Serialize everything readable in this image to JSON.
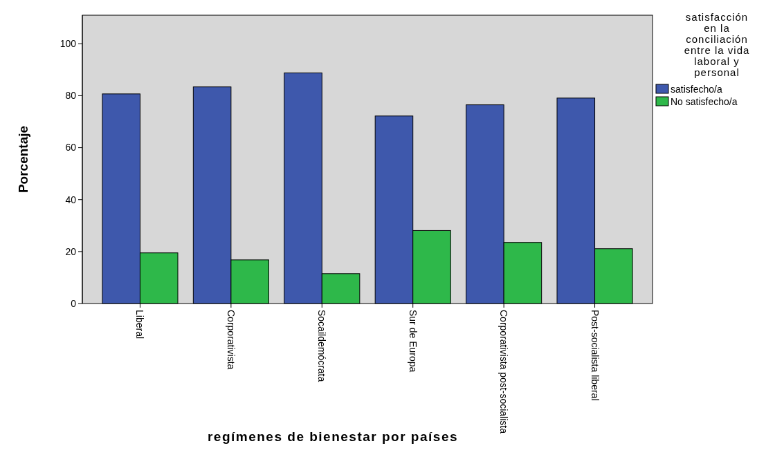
{
  "chart_data": {
    "type": "bar",
    "xlabel": "regímenes de bienestar por países",
    "ylabel": "Porcentaje",
    "legend_title": "satisfacción en la conciliación entre la vida laboral y personal",
    "categories": [
      "Liberal",
      "Corporativista",
      "Socaildemócrata",
      "Sur de Europa",
      "Corporativista post-socialista",
      "Post-socialista liberal"
    ],
    "series": [
      {
        "name": "satisfecho/a",
        "color": "#3e58ac",
        "values": [
          80.7,
          83.4,
          88.8,
          72.2,
          76.5,
          79.1
        ]
      },
      {
        "name": "No satisfecho/a",
        "color": "#2eb84a",
        "values": [
          19.5,
          16.8,
          11.5,
          28.1,
          23.5,
          21.1
        ]
      }
    ],
    "ylim": [
      0,
      111
    ],
    "yticks": [
      0,
      20,
      40,
      60,
      80,
      100
    ],
    "grid": false,
    "legend": "right"
  }
}
